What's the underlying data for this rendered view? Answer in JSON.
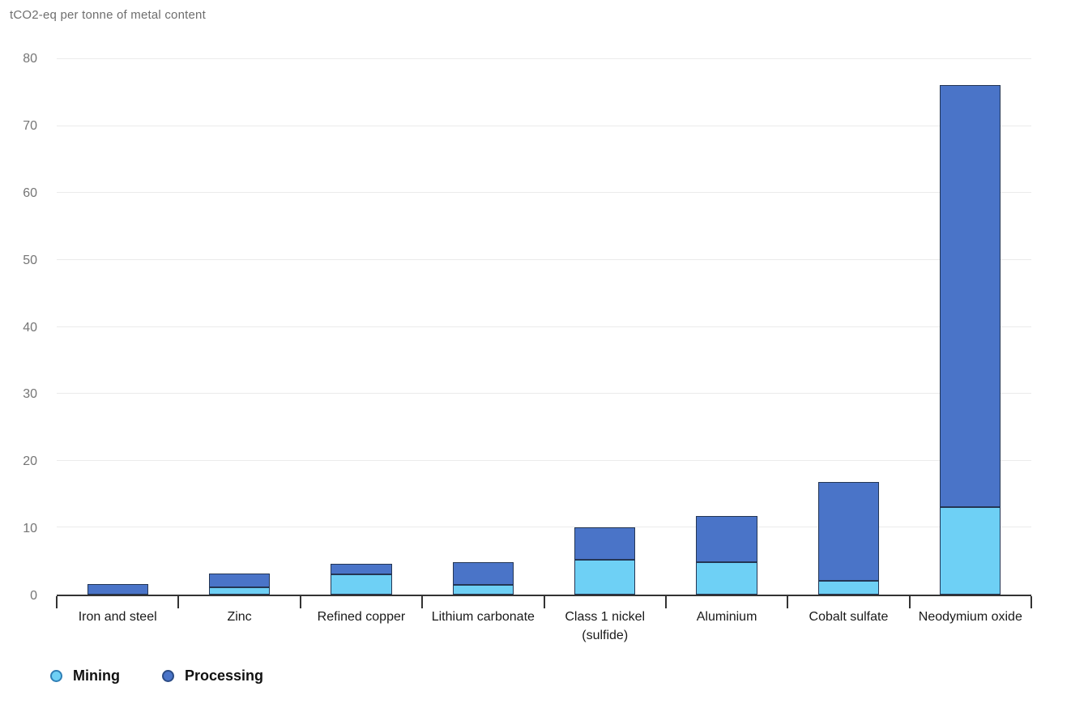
{
  "chart_data": {
    "type": "bar",
    "stacked": true,
    "title": "tCO2-eq per tonne of metal content",
    "categories": [
      "Iron and steel",
      "Zinc",
      "Refined copper",
      "Lithium carbonate",
      "Class 1 nickel (sulfide)",
      "Aluminium",
      "Cobalt sulfate",
      "Neodymium oxide"
    ],
    "series": [
      {
        "name": "Mining",
        "fill": "#6ed0f5",
        "edge": "#243654",
        "legend_edge": "#2f7fb6",
        "values": [
          0,
          1.1,
          3.0,
          1.5,
          5.2,
          4.9,
          2.0,
          13.1
        ]
      },
      {
        "name": "Processing",
        "fill": "#4a74c8",
        "edge": "#243654",
        "legend_edge": "#2c4c85",
        "values": [
          1.6,
          2.0,
          1.6,
          3.4,
          4.8,
          6.8,
          14.8,
          63.0
        ]
      }
    ],
    "xlabel": "",
    "ylabel": "tCO2-eq per tonne of metal content",
    "ylim": [
      0,
      80
    ],
    "yticks": [
      0,
      10,
      20,
      30,
      40,
      50,
      60,
      70,
      80
    ],
    "grid": "horizontal",
    "legend_position": "bottom-left",
    "colors": {
      "axis": "#333333",
      "gridline": "#ebebeb",
      "tick_label": "#757575",
      "category_label": "#1a1a1a",
      "title": "#6e6e6e",
      "legend_text": "#111111"
    }
  }
}
